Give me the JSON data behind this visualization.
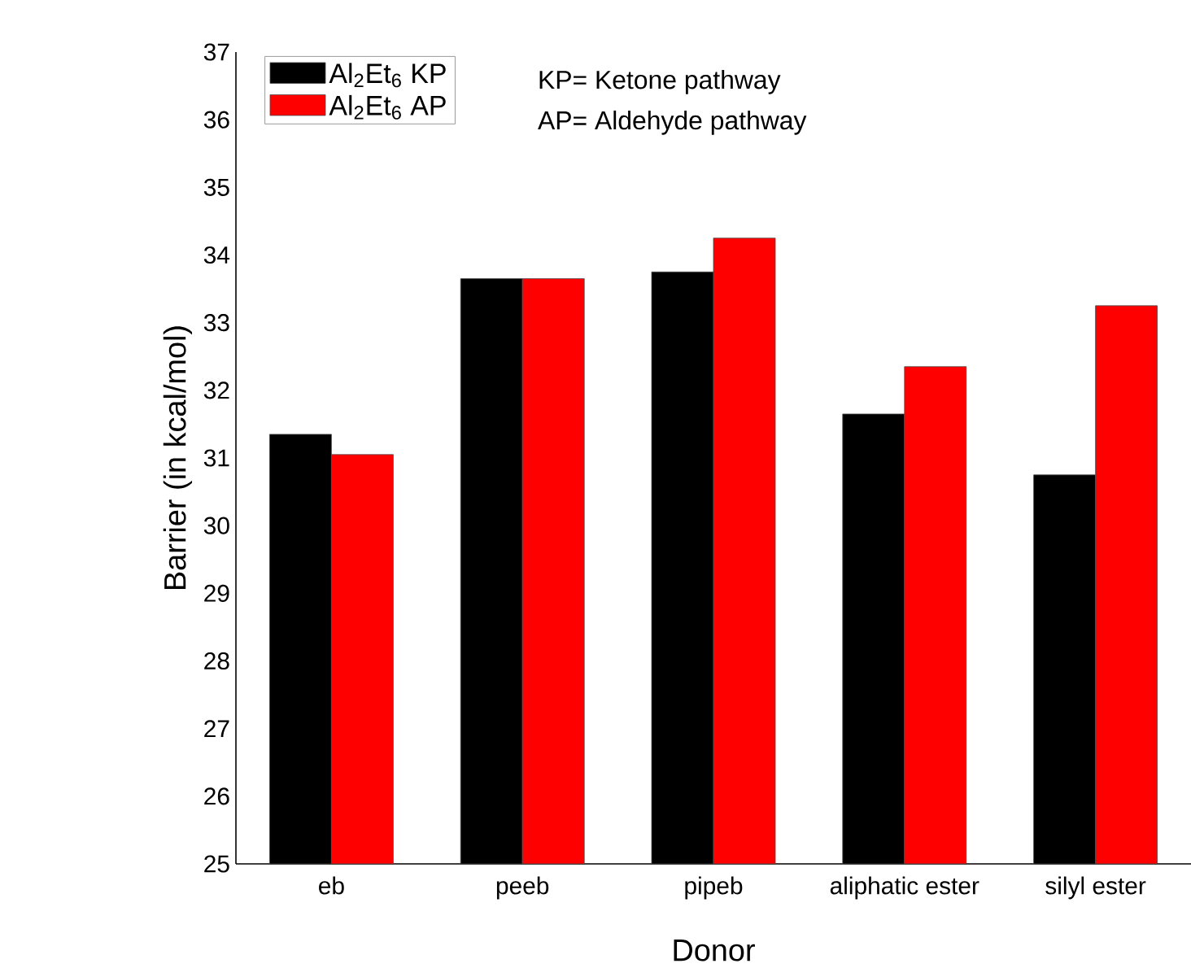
{
  "chart_data": {
    "type": "bar",
    "xlabel": "Donor",
    "ylabel": "Barrier (in kcal/mol)",
    "categories": [
      "eb",
      "peeb",
      "pipeb",
      "aliphatic ester",
      "silyl ester"
    ],
    "series": [
      {
        "name": "Al$_{2}$Et$_{6}$ KP",
        "color": "#000000",
        "values": [
          31.35,
          33.65,
          33.75,
          31.65,
          30.75
        ]
      },
      {
        "name": "Al$_{2}$Et$_{6}$ AP",
        "color": "#ff0000",
        "values": [
          31.05,
          33.65,
          34.25,
          32.35,
          33.25
        ]
      }
    ],
    "ylim": [
      25,
      37
    ],
    "yticks": [
      25,
      26,
      27,
      28,
      29,
      30,
      31,
      32,
      33,
      34,
      35,
      36,
      37
    ],
    "legend": "top left",
    "grid": false,
    "annotations": [
      "KP= Ketone pathway",
      "AP= Aldehyde pathway"
    ]
  }
}
